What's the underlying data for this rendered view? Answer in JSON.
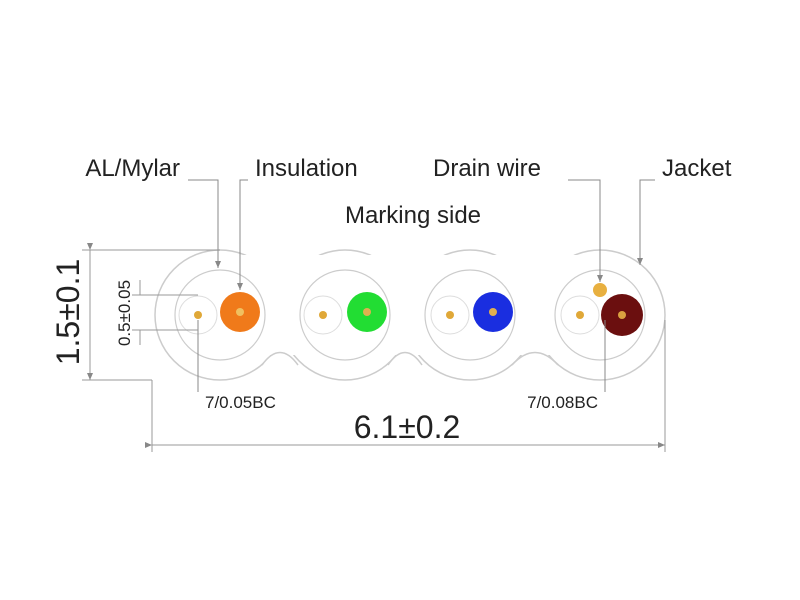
{
  "callouts": [
    "AL/Mylar",
    "Insulation",
    "Drain wire",
    "Jacket"
  ],
  "marking_side": "Marking side",
  "dimensions": {
    "height": "1.5±0.1",
    "conductor": "0.5±0.05",
    "width": "6.1±0.2"
  },
  "conductor_specs": [
    "7/0.05BC",
    "7/0.08BC"
  ]
}
